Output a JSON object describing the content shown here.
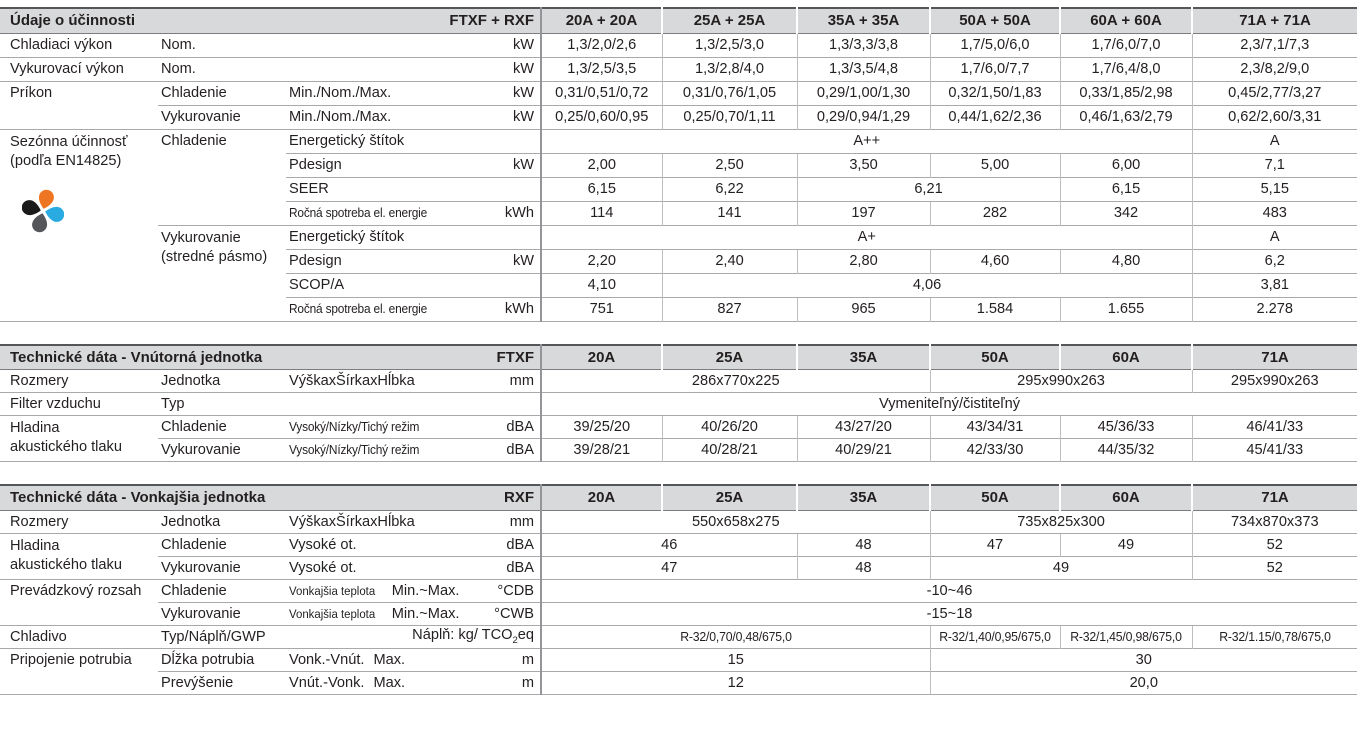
{
  "colors": {
    "text_color": "#231f20",
    "header_bg": "#d8d9da",
    "border_dark": "#55565a",
    "border_mid": "#939598",
    "border_row": "#a7a9ac",
    "border_col": "#bcbec0",
    "border_head_bottom": "#7b7d80",
    "logo_orange": "#ee7623",
    "logo_cyan": "#29abe2",
    "logo_gray": "#55565a",
    "logo_black": "#1a1a1a"
  },
  "logo": {
    "name": "four-petal-flower-logo"
  },
  "tables": [
    {
      "id": "efficiency",
      "head": [
        {
          "t": "Údaje o účinnosti",
          "k": "ht",
          "cs": 2,
          "n": "section-title-efficiency"
        },
        {
          "t": "FTXF + RXF",
          "k": "hm",
          "cs": 2,
          "n": "model-code"
        },
        {
          "t": "20A + 20A",
          "k": "hc"
        },
        {
          "t": "25A + 25A",
          "k": "hc"
        },
        {
          "t": "35A + 35A",
          "k": "hc"
        },
        {
          "t": "50A + 50A",
          "k": "hc"
        },
        {
          "t": "60A + 60A",
          "k": "hc"
        },
        {
          "t": "71A + 71A",
          "k": "hc"
        }
      ],
      "rows": [
        [
          {
            "t": "Chladiaci výkon",
            "k": "l1"
          },
          {
            "t": "Nom.",
            "k": "l2",
            "cs": 2
          },
          {
            "t": "kW",
            "k": "u"
          },
          {
            "t": "1,3/2,0/2,6"
          },
          {
            "t": "1,3/2,5/3,0"
          },
          {
            "t": "1,3/3,3/3,8"
          },
          {
            "t": "1,7/5,0/6,0"
          },
          {
            "t": "1,7/6,0/7,0"
          },
          {
            "t": "2,3/7,1/7,3"
          }
        ],
        [
          {
            "t": "Vykurovací výkon",
            "k": "l1"
          },
          {
            "t": "Nom.",
            "k": "l2",
            "cs": 2
          },
          {
            "t": "kW",
            "k": "u"
          },
          {
            "t": "1,3/2,5/3,5"
          },
          {
            "t": "1,3/2,8/4,0"
          },
          {
            "t": "1,3/3,5/4,8"
          },
          {
            "t": "1,7/6,0/7,7"
          },
          {
            "t": "1,7/6,4/8,0"
          },
          {
            "t": "2,3/8,2/9,0"
          }
        ],
        [
          {
            "t": "Príkon",
            "k": "l1",
            "rs": 2
          },
          {
            "t": "Chladenie",
            "k": "l2"
          },
          {
            "t": "Min./Nom./Max.",
            "k": "l3"
          },
          {
            "t": "kW",
            "k": "u"
          },
          {
            "t": "0,31/0,51/0,72"
          },
          {
            "t": "0,31/0,76/1,05"
          },
          {
            "t": "0,29/1,00/1,30"
          },
          {
            "t": "0,32/1,50/1,83"
          },
          {
            "t": "0,33/1,85/2,98"
          },
          {
            "t": "0,45/2,77/3,27"
          }
        ],
        [
          {
            "t": "Vykurovanie",
            "k": "l2"
          },
          {
            "t": "Min./Nom./Max.",
            "k": "l3"
          },
          {
            "t": "kW",
            "k": "u"
          },
          {
            "t": "0,25/0,60/0,95"
          },
          {
            "t": "0,25/0,70/1,11"
          },
          {
            "t": "0,29/0,94/1,29"
          },
          {
            "t": "0,44/1,62/2,36"
          },
          {
            "t": "0,46/1,63/2,79"
          },
          {
            "t": "0,62/2,60/3,31"
          }
        ],
        [
          {
            "lines": [
              "Sezónna účinnosť",
              "(podľa EN14825)"
            ],
            "logo": true,
            "k": "l1",
            "rs": 8,
            "n": "seasonal-efficiency-label"
          },
          {
            "t": "Chladenie",
            "k": "l2",
            "rs": 4
          },
          {
            "t": "Energetický štítok",
            "k": "l3"
          },
          {
            "t": "",
            "k": "u"
          },
          {
            "t": "A++",
            "cs": 5
          },
          {
            "t": "A"
          }
        ],
        [
          {
            "t": "Pdesign",
            "k": "l3"
          },
          {
            "t": "kW",
            "k": "u"
          },
          {
            "t": "2,00"
          },
          {
            "t": "2,50"
          },
          {
            "t": "3,50"
          },
          {
            "t": "5,00"
          },
          {
            "t": "6,00"
          },
          {
            "t": "7,1"
          }
        ],
        [
          {
            "t": "SEER",
            "k": "l3"
          },
          {
            "t": "",
            "k": "u"
          },
          {
            "t": "6,15"
          },
          {
            "t": "6,22"
          },
          {
            "t": "6,21",
            "cs": 2
          },
          {
            "t": "6,15"
          },
          {
            "t": "5,15"
          }
        ],
        [
          {
            "t": "Ročná spotreba el. energie",
            "k": "l3s"
          },
          {
            "t": "kWh",
            "k": "u"
          },
          {
            "t": "114"
          },
          {
            "t": "141"
          },
          {
            "t": "197"
          },
          {
            "t": "282"
          },
          {
            "t": "342"
          },
          {
            "t": "483"
          }
        ],
        [
          {
            "lines": [
              "Vykurovanie",
              "(stredné pásmo)"
            ],
            "k": "l2",
            "rs": 4
          },
          {
            "t": "Energetický štítok",
            "k": "l3"
          },
          {
            "t": "",
            "k": "u"
          },
          {
            "t": "A+",
            "cs": 5
          },
          {
            "t": "A"
          }
        ],
        [
          {
            "t": "Pdesign",
            "k": "l3"
          },
          {
            "t": "kW",
            "k": "u"
          },
          {
            "t": "2,20"
          },
          {
            "t": "2,40"
          },
          {
            "t": "2,80"
          },
          {
            "t": "4,60"
          },
          {
            "t": "4,80"
          },
          {
            "t": "6,2"
          }
        ],
        [
          {
            "t": "SCOP/A",
            "k": "l3"
          },
          {
            "t": "",
            "k": "u"
          },
          {
            "t": "4,10"
          },
          {
            "t": "4,06",
            "cs": 4
          },
          {
            "t": "3,81"
          }
        ],
        [
          {
            "t": "Ročná spotreba el. energie",
            "k": "l3s"
          },
          {
            "t": "kWh",
            "k": "u"
          },
          {
            "t": "751"
          },
          {
            "t": "827"
          },
          {
            "t": "965"
          },
          {
            "t": "1.584"
          },
          {
            "t": "1.655"
          },
          {
            "t": "2.278"
          }
        ]
      ]
    },
    {
      "id": "indoor",
      "head": [
        {
          "t": "Technické dáta - Vnútorná jednotka",
          "k": "ht",
          "cs": 2,
          "n": "section-title-indoor"
        },
        {
          "t": "FTXF",
          "k": "hm",
          "cs": 2,
          "n": "model-code"
        },
        {
          "t": "20A",
          "k": "hc"
        },
        {
          "t": "25A",
          "k": "hc"
        },
        {
          "t": "35A",
          "k": "hc"
        },
        {
          "t": "50A",
          "k": "hc"
        },
        {
          "t": "60A",
          "k": "hc"
        },
        {
          "t": "71A",
          "k": "hc"
        }
      ],
      "rows": [
        [
          {
            "t": "Rozmery",
            "k": "l1"
          },
          {
            "t": "Jednotka",
            "k": "l2"
          },
          {
            "t": "VýškaxŠírkaxHĺbka",
            "k": "l3"
          },
          {
            "t": "mm",
            "k": "u"
          },
          {
            "t": "286x770x225",
            "cs": 3
          },
          {
            "t": "295x990x263",
            "cs": 2
          },
          {
            "t": "295x990x263"
          }
        ],
        [
          {
            "t": "Filter vzduchu",
            "k": "l1"
          },
          {
            "t": "Typ",
            "k": "l2",
            "cs": 2
          },
          {
            "t": "",
            "k": "u"
          },
          {
            "t": "Vymeniteľný/čistiteľný",
            "cs": 6
          }
        ],
        [
          {
            "lines": [
              "Hladina",
              "akustického tlaku"
            ],
            "k": "l1",
            "rs": 2
          },
          {
            "t": "Chladenie",
            "k": "l2"
          },
          {
            "t": "Vysoký/Nízky/Tichý režim",
            "k": "l3s"
          },
          {
            "t": "dBA",
            "k": "u"
          },
          {
            "t": "39/25/20"
          },
          {
            "t": "40/26/20"
          },
          {
            "t": "43/27/20"
          },
          {
            "t": "43/34/31"
          },
          {
            "t": "45/36/33"
          },
          {
            "t": "46/41/33"
          }
        ],
        [
          {
            "t": "Vykurovanie",
            "k": "l2"
          },
          {
            "t": "Vysoký/Nízky/Tichý režim",
            "k": "l3s"
          },
          {
            "t": "dBA",
            "k": "u"
          },
          {
            "t": "39/28/21"
          },
          {
            "t": "40/28/21"
          },
          {
            "t": "40/29/21"
          },
          {
            "t": "42/33/30"
          },
          {
            "t": "44/35/32"
          },
          {
            "t": "45/41/33"
          }
        ]
      ]
    },
    {
      "id": "outdoor",
      "head": [
        {
          "t": "Technické dáta - Vonkajšia jednotka",
          "k": "ht",
          "cs": 2,
          "n": "section-title-outdoor"
        },
        {
          "t": "RXF",
          "k": "hm",
          "cs": 2,
          "n": "model-code"
        },
        {
          "t": "20A",
          "k": "hc"
        },
        {
          "t": "25A",
          "k": "hc"
        },
        {
          "t": "35A",
          "k": "hc"
        },
        {
          "t": "50A",
          "k": "hc"
        },
        {
          "t": "60A",
          "k": "hc"
        },
        {
          "t": "71A",
          "k": "hc"
        }
      ],
      "rows": [
        [
          {
            "t": "Rozmery",
            "k": "l1"
          },
          {
            "t": "Jednotka",
            "k": "l2"
          },
          {
            "t": "VýškaxŠírkaxHĺbka",
            "k": "l3"
          },
          {
            "t": "mm",
            "k": "u"
          },
          {
            "t": "550x658x275",
            "cs": 3
          },
          {
            "t": "735x825x300",
            "cs": 2
          },
          {
            "t": "734x870x373"
          }
        ],
        [
          {
            "lines": [
              "Hladina",
              "akustického tlaku"
            ],
            "k": "l1",
            "rs": 2
          },
          {
            "t": "Chladenie",
            "k": "l2"
          },
          {
            "t": "Vysoké ot.",
            "k": "l3"
          },
          {
            "t": "dBA",
            "k": "u"
          },
          {
            "t": "46",
            "cs": 2
          },
          {
            "t": "48"
          },
          {
            "t": "47"
          },
          {
            "t": "49"
          },
          {
            "t": "52"
          }
        ],
        [
          {
            "t": "Vykurovanie",
            "k": "l2"
          },
          {
            "t": "Vysoké ot.",
            "k": "l3"
          },
          {
            "t": "dBA",
            "k": "u"
          },
          {
            "t": "47",
            "cs": 2
          },
          {
            "t": "48"
          },
          {
            "t": "49",
            "cs": 2
          },
          {
            "t": "52"
          }
        ],
        [
          {
            "t": "Prevádzkový rozsah",
            "k": "l1",
            "rs": 2
          },
          {
            "t": "Chladenie",
            "k": "l2"
          },
          {
            "parts": [
              {
                "t": "Vonkajšia teplota",
                "small": true
              },
              {
                "t": "Min.~Max."
              }
            ],
            "k": "l3"
          },
          {
            "t": "°CDB",
            "k": "u"
          },
          {
            "t": "-10~46",
            "cs": 6
          }
        ],
        [
          {
            "t": "Vykurovanie",
            "k": "l2"
          },
          {
            "parts": [
              {
                "t": "Vonkajšia teplota",
                "small": true
              },
              {
                "t": "Min.~Max."
              }
            ],
            "k": "l3"
          },
          {
            "t": "°CWB",
            "k": "u"
          },
          {
            "t": "-15~18",
            "cs": 6
          }
        ],
        [
          {
            "t": "Chladivo",
            "k": "l1"
          },
          {
            "t": "Typ/Náplň/GWP",
            "k": "l2"
          },
          {
            "parts": [
              {
                "t": "Náplň: kg/ TCO"
              },
              {
                "t": "2",
                "sub": true
              },
              {
                "t": "eq"
              }
            ],
            "k": "ur",
            "cs": 2
          },
          {
            "t": "R-32/0,70/0,48/675,0",
            "k": "vs",
            "cs": 3
          },
          {
            "t": "R-32/1,40/0,95/675,0",
            "k": "vs"
          },
          {
            "t": "R-32/1,45/0,98/675,0",
            "k": "vs"
          },
          {
            "t": "R-32/1.15/0,78/675,0",
            "k": "vs"
          }
        ],
        [
          {
            "t": "Pripojenie potrubia",
            "k": "l1",
            "rs": 2
          },
          {
            "t": "Dĺžka potrubia",
            "k": "l2"
          },
          {
            "parts": [
              {
                "t": "Vonk.-Vnút."
              },
              {
                "t": "Max."
              }
            ],
            "k": "l3"
          },
          {
            "t": "m",
            "k": "u"
          },
          {
            "t": "15",
            "cs": 3
          },
          {
            "t": "30",
            "cs": 3
          }
        ],
        [
          {
            "t": "Prevýšenie",
            "k": "l2"
          },
          {
            "parts": [
              {
                "t": "Vnút.-Vonk."
              },
              {
                "t": "Max."
              }
            ],
            "k": "l3"
          },
          {
            "t": "m",
            "k": "u"
          },
          {
            "t": "12",
            "cs": 3
          },
          {
            "t": "20,0",
            "cs": 3
          }
        ]
      ]
    }
  ]
}
